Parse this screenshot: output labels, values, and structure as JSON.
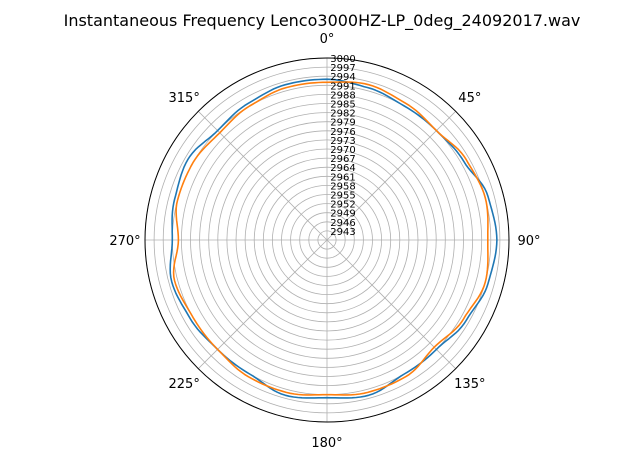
{
  "chart_data": {
    "type": "line",
    "projection": "polar",
    "title": "Instantaneous Frequency  Lenco3000HZ-LP_0deg_24092017.wav",
    "theta_direction": "clockwise",
    "theta_zero": "top",
    "theta_ticks": [
      "0°",
      "45°",
      "90°",
      "135°",
      "180°",
      "225°",
      "270°",
      "315°"
    ],
    "rlim": [
      2940,
      3000
    ],
    "r_ticks": [
      "2943",
      "2946",
      "2949",
      "2952",
      "2955",
      "2958",
      "2961",
      "2964",
      "2967",
      "2970",
      "2973",
      "2976",
      "2979",
      "2982",
      "2985",
      "2988",
      "2991",
      "2994",
      "2997",
      "3000"
    ],
    "grid": true,
    "series": [
      {
        "color": "#1f77b4",
        "theta_deg": [
          0,
          15,
          30,
          45,
          60,
          75,
          90,
          105,
          120,
          135,
          150,
          165,
          180,
          195,
          210,
          225,
          240,
          255,
          270,
          285,
          300,
          315,
          330,
          345
        ],
        "r": [
          2993,
          2992,
          2991,
          2991,
          2992,
          2995,
          2996,
          2995,
          2993,
          2991,
          2991,
          2993,
          2992,
          2993,
          2991,
          2991,
          2992,
          2993,
          2991,
          2992,
          2993,
          2991,
          2992,
          2993
        ]
      },
      {
        "color": "#ff7f0e",
        "theta_deg": [
          0,
          15,
          30,
          45,
          60,
          75,
          90,
          105,
          120,
          135,
          150,
          165,
          180,
          195,
          210,
          225,
          240,
          255,
          270,
          285,
          300,
          315,
          330,
          345
        ],
        "r": [
          2992,
          2993,
          2992,
          2991,
          2993,
          2994,
          2993,
          2994,
          2992,
          2990,
          2992,
          2992,
          2991,
          2992,
          2992,
          2991,
          2991,
          2992,
          2989,
          2991,
          2991,
          2990,
          2991,
          2992
        ]
      }
    ]
  }
}
